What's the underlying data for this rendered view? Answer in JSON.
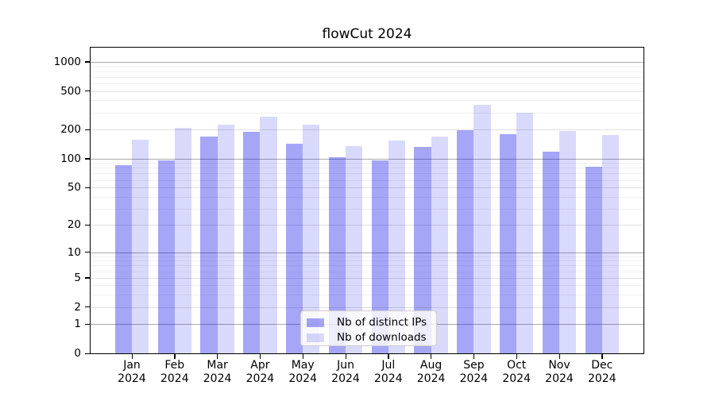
{
  "title": "flowCut 2024",
  "chart_data": {
    "type": "bar",
    "title": "flowCut 2024",
    "categories": [
      "Jan 2024",
      "Feb 2024",
      "Mar 2024",
      "Apr 2024",
      "May 2024",
      "Jun 2024",
      "Jul 2024",
      "Aug 2024",
      "Sep 2024",
      "Oct 2024",
      "Nov 2024",
      "Dec 2024"
    ],
    "series": [
      {
        "name": "Nb of distinct IPs",
        "color": "rgba(0,0,230,0.35)",
        "values": [
          86,
          96,
          168,
          191,
          144,
          103,
          96,
          132,
          197,
          178,
          118,
          82
        ]
      },
      {
        "name": "Nb of downloads",
        "color": "rgba(0,0,230,0.15)",
        "values": [
          158,
          210,
          226,
          274,
          223,
          135,
          155,
          168,
          360,
          299,
          195,
          175
        ]
      }
    ],
    "xlabel": "",
    "ylabel": "",
    "yscale": "log1p",
    "ylim": [
      0,
      1400
    ],
    "yticks": [
      0,
      1,
      2,
      5,
      10,
      20,
      50,
      100,
      200,
      500,
      1000
    ],
    "major_gridlines": [
      1,
      10,
      100,
      1000
    ],
    "minor_gridlines": [
      3,
      4,
      6,
      7,
      8,
      9,
      30,
      40,
      60,
      70,
      80,
      90,
      300,
      400,
      600,
      700,
      800,
      900
    ],
    "grid": true,
    "legend_position": "lower center"
  }
}
